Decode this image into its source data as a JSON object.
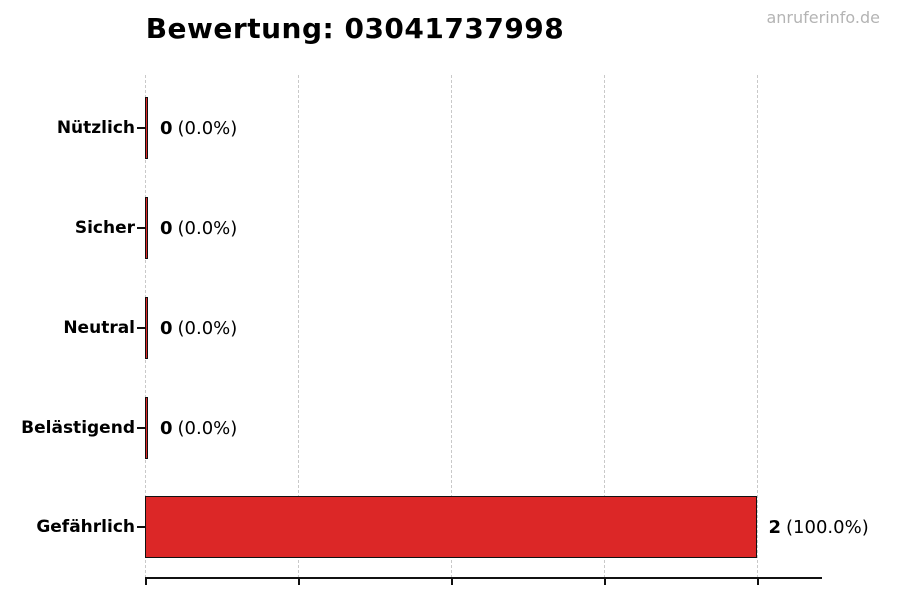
{
  "header": {
    "title": "Bewertung: 03041737998",
    "watermark": "anruferinfo.de"
  },
  "colors": {
    "bar_fill": "#dc2727",
    "bar_edge": "#111111",
    "grid": "#c9c9c9",
    "axis": "#111111",
    "watermark": "#b4b4b4",
    "title": "#000000"
  },
  "chart_data": {
    "type": "bar",
    "orientation": "horizontal",
    "title": "Bewertung: 03041737998",
    "categories": [
      "Nützlich",
      "Sicher",
      "Neutral",
      "Belästigend",
      "Gefährlich"
    ],
    "values": [
      0,
      0,
      0,
      0,
      2
    ],
    "percentages": [
      0.0,
      0.0,
      0.0,
      0.0,
      100.0
    ],
    "rows": [
      {
        "label": "Nützlich",
        "count": "0",
        "percent": "(0.0%)"
      },
      {
        "label": "Sicher",
        "count": "0",
        "percent": "(0.0%)"
      },
      {
        "label": "Neutral",
        "count": "0",
        "percent": "(0.0%)"
      },
      {
        "label": "Belästigend",
        "count": "0",
        "percent": "(0.0%)"
      },
      {
        "label": "Gefährlich",
        "count": "2",
        "percent": "(100.0%)"
      }
    ],
    "xlim": [
      0,
      2
    ],
    "xticks": [
      0,
      0.5,
      1.0,
      1.5,
      2.0
    ],
    "xtick_labels_visible": false,
    "grid": true,
    "grid_style": "dashed-vertical",
    "legend": false,
    "bar_color": "#dc2727"
  }
}
